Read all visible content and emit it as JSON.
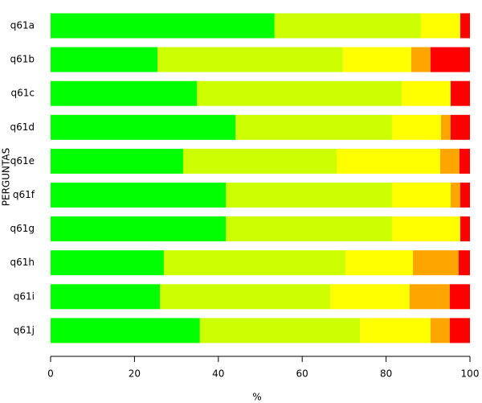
{
  "chart_data": {
    "type": "stacked-bar",
    "orientation": "horizontal",
    "x_label": "%",
    "y_label": "PERGUNTAS",
    "categories": [
      "q61a",
      "q61b",
      "q61c",
      "q61d",
      "q61e",
      "q61f",
      "q61g",
      "q61h",
      "q61i",
      "q61j"
    ],
    "series": [
      {
        "color": "#00ff00",
        "values": [
          53.4,
          25.5,
          34.9,
          44.1,
          31.6,
          41.8,
          41.8,
          27.0,
          26.1,
          35.6
        ]
      },
      {
        "color": "#ccff00",
        "values": [
          34.9,
          44.2,
          48.8,
          37.3,
          36.6,
          39.6,
          39.6,
          43.3,
          40.6,
          38.2
        ]
      },
      {
        "color": "#ffff00",
        "values": [
          9.4,
          16.3,
          11.7,
          11.7,
          24.7,
          14.0,
          16.3,
          16.1,
          18.9,
          16.8
        ]
      },
      {
        "color": "#ffa500",
        "values": [
          0,
          4.6,
          0,
          2.3,
          4.6,
          2.3,
          0,
          10.9,
          9.6,
          4.6
        ]
      },
      {
        "color": "#ff0000",
        "values": [
          2.3,
          9.4,
          4.6,
          4.6,
          2.5,
          2.3,
          2.3,
          2.7,
          4.8,
          4.8
        ]
      }
    ],
    "xlim": [
      0,
      100
    ],
    "xticks": [
      0,
      20,
      40,
      60,
      80,
      100
    ]
  }
}
